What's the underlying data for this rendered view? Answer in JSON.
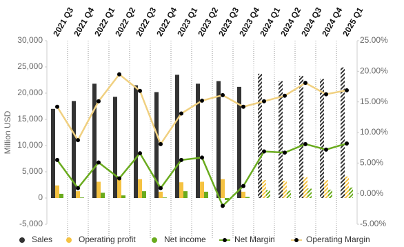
{
  "chart_data": {
    "type": "bar",
    "y_label": "Million USD",
    "categories": [
      "2021 Q3",
      "2021 Q4",
      "2022 Q1",
      "2022 Q2",
      "2022 Q3",
      "2022 Q4",
      "2023 Q1",
      "2023 Q2",
      "2023 Q3",
      "2023 Q4",
      "2024 Q1",
      "2024 Q2",
      "2024 Q3",
      "2024 Q4",
      "2025 Q1"
    ],
    "hatched": [
      false,
      false,
      false,
      false,
      false,
      false,
      false,
      false,
      false,
      false,
      true,
      true,
      true,
      true,
      true
    ],
    "series": [
      {
        "name": "Sales",
        "type": "bar",
        "color": "#333333",
        "values": [
          17000,
          18500,
          21800,
          19300,
          21500,
          20200,
          23500,
          21800,
          22300,
          21200,
          23700,
          22300,
          23300,
          22700,
          24900
        ]
      },
      {
        "name": "Operating profit",
        "type": "bar",
        "color": "#f5c242",
        "values": [
          2400,
          1300,
          3100,
          3900,
          3600,
          1200,
          3000,
          3100,
          3600,
          1200,
          3400,
          3300,
          4000,
          3400,
          4100
        ]
      },
      {
        "name": "Net income",
        "type": "bar",
        "color": "#6aab1e",
        "values": [
          800,
          100,
          1000,
          500,
          1300,
          100,
          1300,
          1200,
          -400,
          200,
          1500,
          1400,
          1800,
          1600,
          2000
        ]
      },
      {
        "name": "Net Margin",
        "type": "line",
        "axis": "y2",
        "color": "#6aab1e",
        "values": [
          5.5,
          0.9,
          5.1,
          2.5,
          6.6,
          0.9,
          5.5,
          5.9,
          -2.0,
          1.25,
          6.9,
          6.7,
          8.1,
          7.2,
          8.2
        ]
      },
      {
        "name": "Operating Margin",
        "type": "line",
        "axis": "y2",
        "color": "#f0d080",
        "values": [
          14.2,
          8.75,
          15.1,
          19.5,
          16.8,
          8.1,
          13.1,
          15.2,
          16.1,
          14.2,
          15.1,
          16.0,
          18.1,
          16.25,
          16.9
        ]
      }
    ],
    "ylim": [
      -5000,
      30000
    ],
    "yticks": [
      {
        "value": -5000,
        "label": "-5,000"
      },
      0,
      {
        "value": 5000,
        "label": "5,000"
      },
      {
        "value": 10000,
        "label": "10,000"
      },
      {
        "value": 15000,
        "label": "15,000"
      },
      {
        "value": 20000,
        "label": "20,000"
      },
      {
        "value": 25000,
        "label": "25,000"
      },
      {
        "value": 30000,
        "label": "30,000"
      }
    ],
    "y2lim": [
      -5,
      25
    ],
    "y2ticks": [
      {
        "value": -5,
        "label": "-5.00%"
      },
      {
        "value": 0,
        "label": "0.00%"
      },
      {
        "value": 5,
        "label": "5.00%"
      },
      {
        "value": 10,
        "label": "10.00%"
      },
      {
        "value": 15,
        "label": "15.00%"
      },
      {
        "value": 20,
        "label": "20.00%"
      },
      {
        "value": 25,
        "label": "25.00%"
      }
    ],
    "legend": "bottom"
  }
}
